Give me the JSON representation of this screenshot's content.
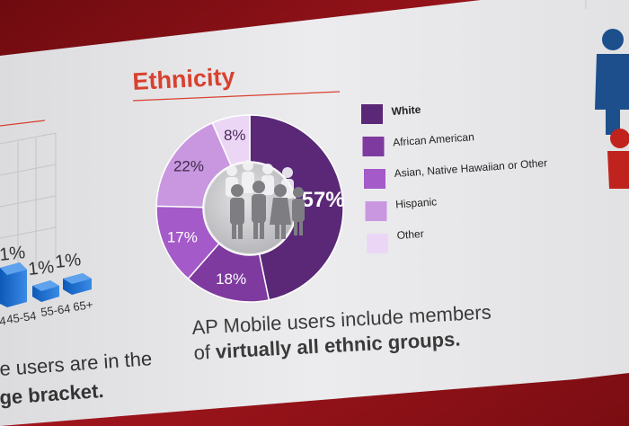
{
  "section_title": "Ethnicity",
  "chart_data": {
    "type": "pie",
    "title": "Ethnicity",
    "slices": [
      {
        "label": "White",
        "value": 57,
        "display": "57%",
        "color": "#5a2877"
      },
      {
        "label": "African American",
        "value": 18,
        "display": "18%",
        "color": "#7f3a9f"
      },
      {
        "label": "Asian, Native Hawaiian or Other",
        "value": 17,
        "display": "17%",
        "color": "#a45ac8"
      },
      {
        "label": "Hispanic",
        "value": 22,
        "display": "22%",
        "color": "#c997e0"
      },
      {
        "label": "Other",
        "value": 8,
        "display": "8%",
        "color": "#ecd6f5"
      }
    ],
    "legend_position": "right"
  },
  "caption": {
    "line1": "AP Mobile users include members",
    "line2_prefix": "of ",
    "line2_bold": "virtually all ethnic groups."
  },
  "age_chart": {
    "type": "bar",
    "labels_visible": [
      "1%",
      "1%",
      "1%"
    ],
    "categories_visible": [
      "4",
      "45-54",
      "55-64",
      "65+"
    ]
  },
  "left_caption": {
    "line1": "e users are in the",
    "line2": "ge bracket."
  },
  "colors": {
    "title": "#d8412f",
    "background": "#e9e9eb",
    "frame": "#8e1016",
    "male_figure": "#1d4f8c",
    "female_figure": "#c0231d"
  }
}
